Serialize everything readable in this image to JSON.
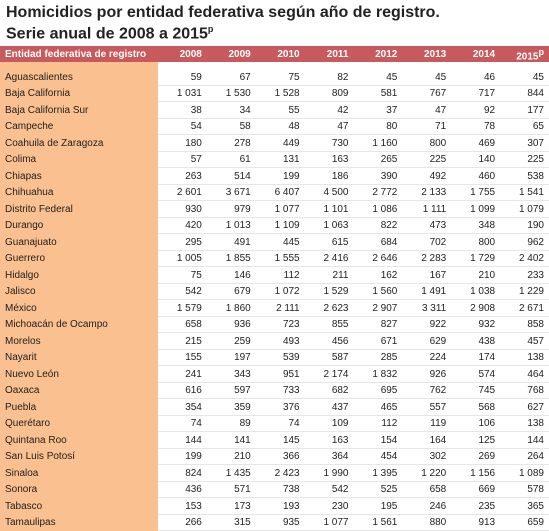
{
  "header": {
    "title_line1": "Homicidios por entidad federativa según año de registro.",
    "title_line2": "Serie anual de 2008 a 2015",
    "title_sup": "p"
  },
  "table": {
    "columns": [
      "Entidad federativa de registro",
      "2008",
      "2009",
      "2010",
      "2011",
      "2012",
      "2013",
      "2014",
      "2015"
    ],
    "last_column_sup": "p",
    "rows": [
      [
        "Aguascalientes",
        "59",
        "67",
        "75",
        "82",
        "45",
        "45",
        "46",
        "45"
      ],
      [
        "Baja California",
        "1 031",
        "1 530",
        "1 528",
        "809",
        "581",
        "767",
        "717",
        "844"
      ],
      [
        "Baja California Sur",
        "38",
        "34",
        "55",
        "42",
        "37",
        "47",
        "92",
        "177"
      ],
      [
        "Campeche",
        "54",
        "58",
        "48",
        "47",
        "80",
        "71",
        "78",
        "65"
      ],
      [
        "Coahuila de Zaragoza",
        "180",
        "278",
        "449",
        "730",
        "1 160",
        "800",
        "469",
        "307"
      ],
      [
        "Colima",
        "57",
        "61",
        "131",
        "163",
        "265",
        "225",
        "140",
        "225"
      ],
      [
        "Chiapas",
        "263",
        "514",
        "199",
        "186",
        "390",
        "492",
        "460",
        "538"
      ],
      [
        "Chihuahua",
        "2 601",
        "3 671",
        "6 407",
        "4 500",
        "2 772",
        "2 133",
        "1 755",
        "1 541"
      ],
      [
        "Distrito Federal",
        "930",
        "979",
        "1 077",
        "1 101",
        "1 086",
        "1 111",
        "1 099",
        "1 079"
      ],
      [
        "Durango",
        "420",
        "1 013",
        "1 109",
        "1 063",
        "822",
        "473",
        "348",
        "190"
      ],
      [
        "Guanajuato",
        "295",
        "491",
        "445",
        "615",
        "684",
        "702",
        "800",
        "962"
      ],
      [
        "Guerrero",
        "1 005",
        "1 855",
        "1 555",
        "2 416",
        "2 646",
        "2 283",
        "1 729",
        "2 402"
      ],
      [
        "Hidalgo",
        "75",
        "146",
        "112",
        "211",
        "162",
        "167",
        "210",
        "233"
      ],
      [
        "Jalisco",
        "542",
        "679",
        "1 072",
        "1 529",
        "1 560",
        "1 491",
        "1 038",
        "1 229"
      ],
      [
        "México",
        "1 579",
        "1 860",
        "2 111",
        "2 623",
        "2 907",
        "3 311",
        "2 908",
        "2 671"
      ],
      [
        "Michoacán de Ocampo",
        "658",
        "936",
        "723",
        "855",
        "827",
        "922",
        "932",
        "858"
      ],
      [
        "Morelos",
        "215",
        "259",
        "493",
        "456",
        "671",
        "629",
        "438",
        "457"
      ],
      [
        "Nayarit",
        "155",
        "197",
        "539",
        "587",
        "285",
        "224",
        "174",
        "138"
      ],
      [
        "Nuevo León",
        "241",
        "343",
        "951",
        "2 174",
        "1 832",
        "926",
        "574",
        "464"
      ],
      [
        "Oaxaca",
        "616",
        "597",
        "733",
        "682",
        "695",
        "762",
        "745",
        "768"
      ],
      [
        "Puebla",
        "354",
        "359",
        "376",
        "437",
        "465",
        "557",
        "568",
        "627"
      ],
      [
        "Querétaro",
        "74",
        "89",
        "74",
        "109",
        "112",
        "119",
        "106",
        "138"
      ],
      [
        "Quintana Roo",
        "144",
        "141",
        "145",
        "163",
        "154",
        "164",
        "125",
        "144"
      ],
      [
        "San Luis Potosí",
        "199",
        "210",
        "366",
        "364",
        "454",
        "302",
        "269",
        "264"
      ],
      [
        "Sinaloa",
        "824",
        "1 435",
        "2 423",
        "1 990",
        "1 395",
        "1 220",
        "1 156",
        "1 089"
      ],
      [
        "Sonora",
        "436",
        "571",
        "738",
        "542",
        "525",
        "658",
        "669",
        "578"
      ],
      [
        "Tabasco",
        "153",
        "173",
        "193",
        "230",
        "195",
        "246",
        "235",
        "365"
      ],
      [
        "Tamaulipas",
        "266",
        "315",
        "935",
        "1 077",
        "1 561",
        "880",
        "913",
        "659"
      ]
    ]
  }
}
